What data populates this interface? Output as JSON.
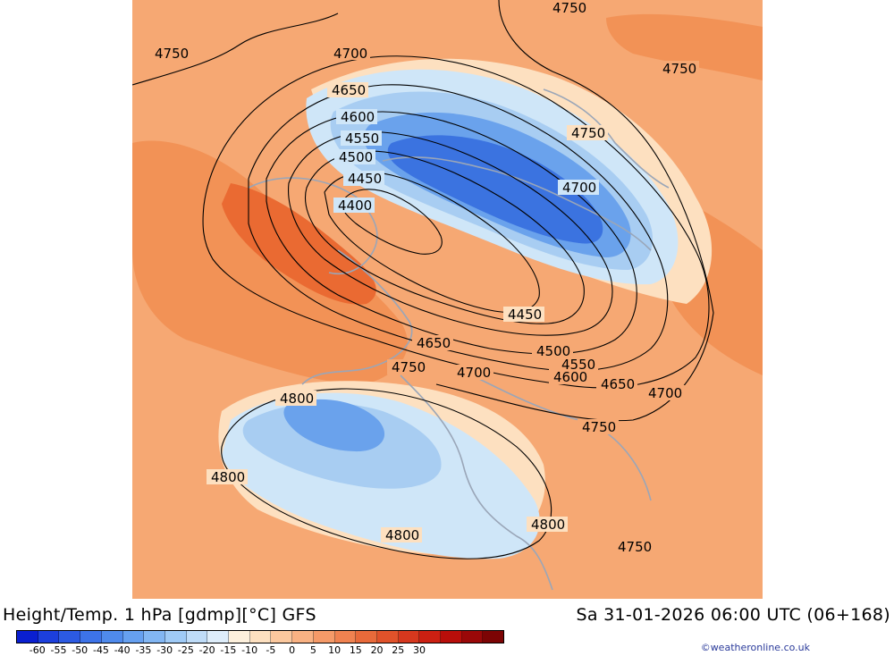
{
  "map": {
    "colors": {
      "background": "#f6a873",
      "warm_mid": "#f29256",
      "warm_strong": "#ea6a32",
      "light": "#fde0c0",
      "cold_pale": "#cfe6f8",
      "cold_light": "#a8cdf2",
      "cold_mid": "#6aa2ec",
      "cold_deep": "#3b73e0",
      "coast": "#9aa6b8",
      "contour": "#000000"
    },
    "contour_labels": [
      "4750",
      "4750",
      "4750",
      "4700",
      "4650",
      "4600",
      "4550",
      "4500",
      "4450",
      "4400",
      "4750",
      "4700",
      "4450",
      "4650",
      "4500",
      "4550",
      "4600",
      "4650",
      "4700",
      "4750",
      "4700",
      "4800",
      "4750",
      "4800",
      "4800",
      "4800",
      "4750"
    ]
  },
  "footer": {
    "title": "Height/Temp. 1 hPa [gdmp][°C] GFS",
    "valid_time": "Sa 31-01-2026 06:00 UTC (06+168)",
    "credit": "©weatheronline.co.uk"
  },
  "colorbar": {
    "colors": [
      "#0a1fd0",
      "#1c3fdc",
      "#2c5ae2",
      "#3d73e8",
      "#4f8aec",
      "#66a0f0",
      "#82b6f3",
      "#9fcaf6",
      "#bfdcf8",
      "#deedfa",
      "#fdf0dc",
      "#fde0c0",
      "#fbc89e",
      "#f9b283",
      "#f59a68",
      "#f08250",
      "#e86a3a",
      "#e0522a",
      "#d6381e",
      "#cc2012",
      "#b80e0a",
      "#9a0808",
      "#7c0404"
    ],
    "ticks": [
      "-60",
      "-55",
      "-50",
      "-45",
      "-40",
      "-35",
      "-30",
      "-25",
      "-20",
      "-15",
      "-10",
      "-5",
      "0",
      "5",
      "10",
      "15",
      "20",
      "25",
      "30"
    ]
  }
}
